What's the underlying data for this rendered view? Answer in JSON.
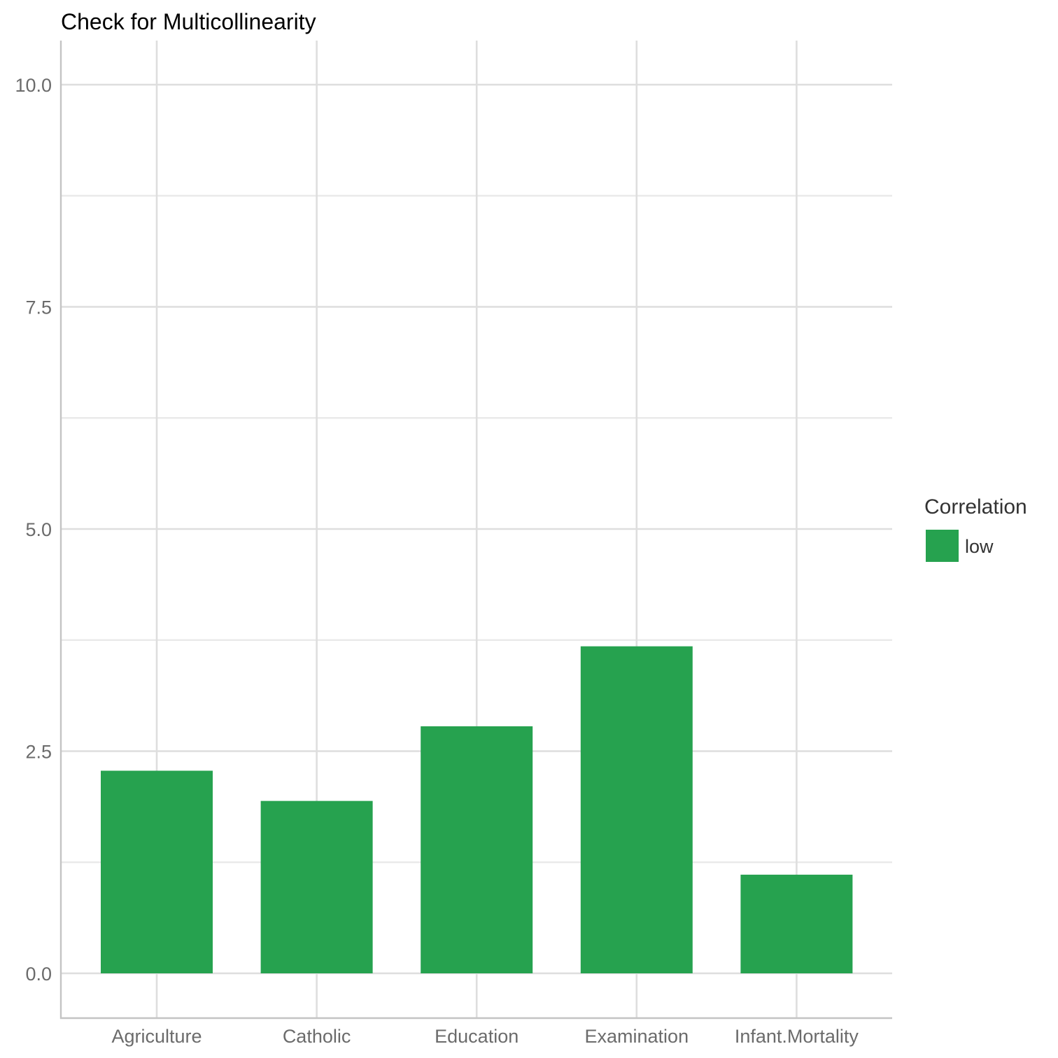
{
  "chart_data": {
    "type": "bar",
    "title": "Check for Multicollinearity",
    "xlabel": "",
    "ylabel": "",
    "categories": [
      "Agriculture",
      "Catholic",
      "Education",
      "Examination",
      "Infant.Mortality"
    ],
    "values": [
      2.28,
      1.94,
      2.78,
      3.68,
      1.11
    ],
    "series_group": [
      "low",
      "low",
      "low",
      "low",
      "low"
    ],
    "ylim": [
      -0.5,
      10.5
    ],
    "yticks": [
      0.0,
      2.5,
      5.0,
      7.5,
      10.0
    ],
    "ytick_labels": [
      "0.0",
      "2.5",
      "5.0",
      "7.5",
      "10.0"
    ],
    "yminor": [
      1.25,
      3.75,
      6.25,
      8.75
    ],
    "grid": true,
    "bar_color": "#26A24F",
    "legend": {
      "title": "Correlation",
      "position": "right",
      "items": [
        {
          "label": "low",
          "color": "#26A24F"
        }
      ]
    }
  }
}
